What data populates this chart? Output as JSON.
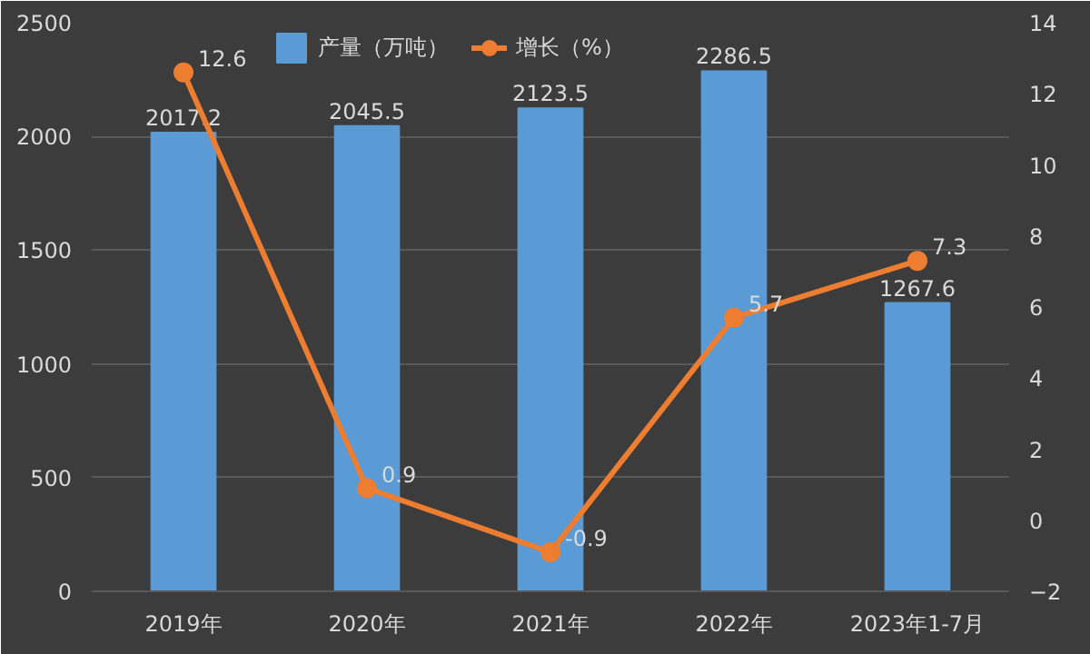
{
  "chart_data": {
    "type": "bar",
    "categories": [
      "2019年",
      "2020年",
      "2021年",
      "2022年",
      "2023年1-7月"
    ],
    "series": [
      {
        "name": "产量（万吨）",
        "type": "bar",
        "color": "#5b9bd5",
        "values": [
          2017.2,
          2045.5,
          2123.5,
          2286.5,
          1267.6
        ]
      },
      {
        "name": "增长（%）",
        "type": "line",
        "axis": "y2",
        "color": "#ed7d31",
        "marker": "circle",
        "values": [
          12.6,
          0.9,
          -0.9,
          5.7,
          7.3
        ]
      }
    ],
    "ylim": [
      0,
      2500
    ],
    "yticks": [
      0,
      500,
      1000,
      1500,
      2000,
      2500
    ],
    "y2lim": [
      -2,
      14
    ],
    "y2ticks": [
      -2,
      0,
      2,
      4,
      6,
      8,
      10,
      12,
      14
    ],
    "grid": "y",
    "legend": "top",
    "data_labels": true
  }
}
